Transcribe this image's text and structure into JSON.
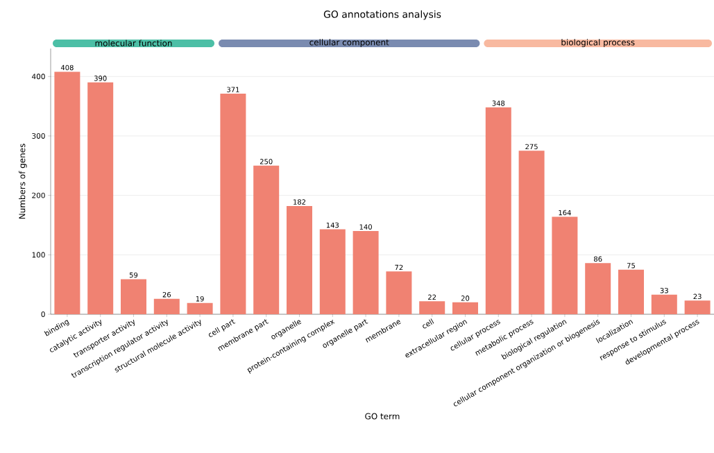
{
  "chart_data": {
    "type": "bar",
    "title": "GO annotations analysis",
    "xlabel": "GO term",
    "ylabel": "Numbers of genes",
    "categories": [
      "binding",
      "catalytic activity",
      "transporter activity",
      "transcription regulator activity",
      "structural molecule activity",
      "cell part",
      "membrane part",
      "organelle",
      "protein-containing complex",
      "organelle part",
      "membrane",
      "cell",
      "extracellular region",
      "cellular process",
      "metabolic process",
      "biological regulation",
      "cellular component organization or biogenesis",
      "localization",
      "response to stimulus",
      "developmental process"
    ],
    "values": [
      408,
      390,
      59,
      26,
      19,
      371,
      250,
      182,
      143,
      140,
      72,
      22,
      20,
      348,
      275,
      164,
      86,
      75,
      33,
      23
    ],
    "color": "#f08272",
    "ylim": [
      0,
      447
    ],
    "yticks": [
      0,
      100,
      200,
      300,
      400
    ],
    "grid": "y",
    "data_labels": true,
    "annotations": [
      "molecular function",
      "cellular component",
      "biological process"
    ]
  }
}
